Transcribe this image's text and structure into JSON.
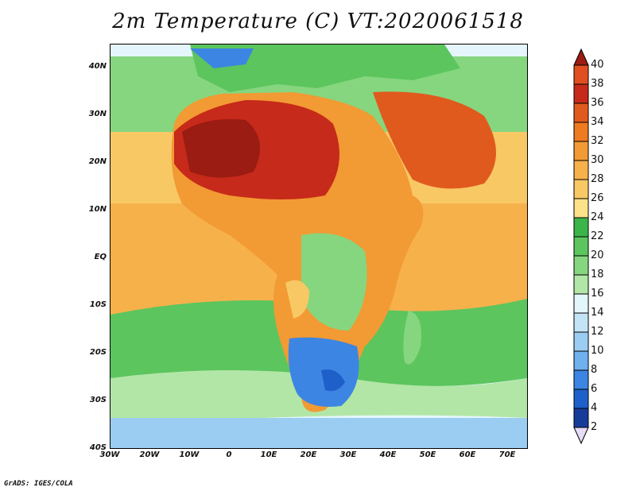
{
  "title": "2m Temperature (C) VT:2020061518",
  "credit": "GrADS: IGES/COLA",
  "axes": {
    "lat_labels": [
      "40N",
      "30N",
      "20N",
      "10N",
      "EQ",
      "10S",
      "20S",
      "30S",
      "40S"
    ],
    "lon_labels": [
      "30W",
      "20W",
      "10W",
      "0",
      "10E",
      "20E",
      "30E",
      "40E",
      "50E",
      "60E",
      "70E"
    ]
  },
  "colorbar": {
    "levels": [
      "40",
      "38",
      "36",
      "34",
      "32",
      "30",
      "28",
      "26",
      "24",
      "22",
      "20",
      "18",
      "16",
      "14",
      "12",
      "10",
      "8",
      "6",
      "4",
      "2"
    ],
    "colors": [
      "#e04e21",
      "#c62a1a",
      "#e05a1e",
      "#ee7a22",
      "#f29a33",
      "#f6b14b",
      "#f8c864",
      "#fde28a",
      "#3bb54a",
      "#5cc55e",
      "#86d67f",
      "#b2e6a6",
      "#e3f6fb",
      "#c3e4f6",
      "#9bcdf3",
      "#6fb0ef",
      "#3d85e2",
      "#1f5fca",
      "#163c9a",
      "#d9cef0"
    ],
    "top_arrow_color": "#9a1c12",
    "bottom_arrow_color": "#e6dcf6"
  },
  "map_colors": {
    "ocean_cool": "#e4f6fb",
    "ocean_green": "#5cc55e",
    "ocean_warm": "#f8c864",
    "land_hot": "#c62a1a",
    "land_warm": "#ee7a22",
    "land_mild": "#f6b14b",
    "land_green": "#86d67f",
    "south_cold": "#3d85e2",
    "south_ocean": "#9bcdf3"
  }
}
